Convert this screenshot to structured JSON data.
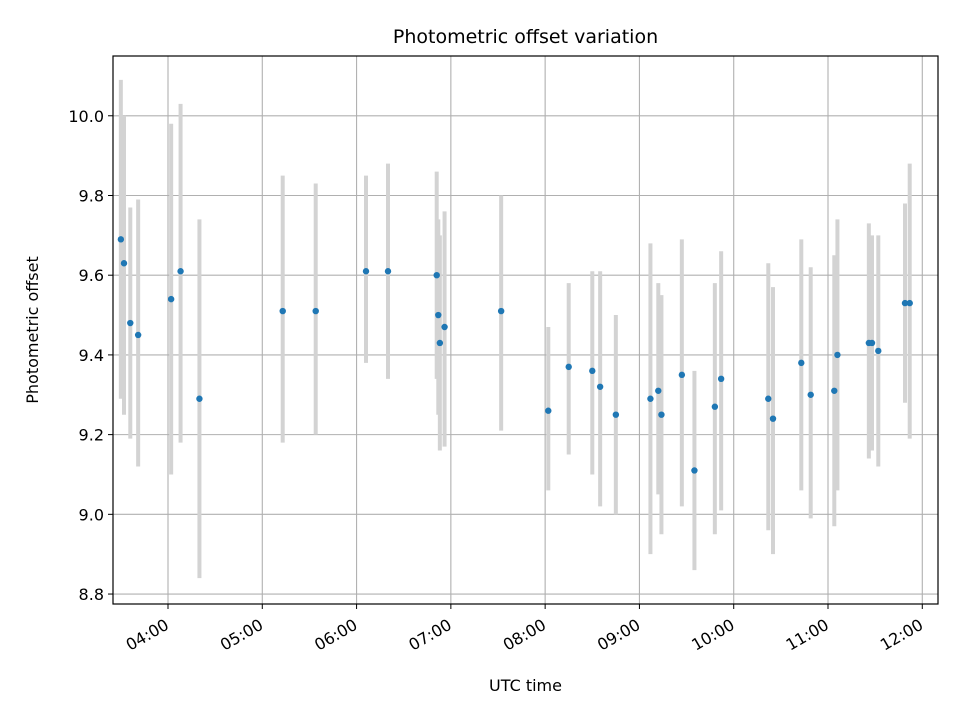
{
  "chart_data": {
    "type": "scatter",
    "title": "Photometric offset variation",
    "xlabel": "UTC time",
    "ylabel": "Photometric offset",
    "xlim": [
      "03:25",
      "12:10"
    ],
    "ylim": [
      8.775,
      10.15
    ],
    "x_ticks": [
      "04:00",
      "05:00",
      "06:00",
      "07:00",
      "08:00",
      "09:00",
      "10:00",
      "11:00",
      "12:00"
    ],
    "y_ticks": [
      "8.8",
      "9.0",
      "9.2",
      "9.4",
      "9.6",
      "9.8",
      "10.0"
    ],
    "grid": true,
    "marker_color": "#1f77b4",
    "errorbar_color": "#d3d3d3",
    "points": [
      {
        "time": "03:30",
        "value": 9.69,
        "low": 9.29,
        "high": 10.09
      },
      {
        "time": "03:32",
        "value": 9.63,
        "low": 9.25,
        "high": 10.0
      },
      {
        "time": "03:36",
        "value": 9.48,
        "low": 9.19,
        "high": 9.77
      },
      {
        "time": "03:41",
        "value": 9.45,
        "low": 9.12,
        "high": 9.79
      },
      {
        "time": "04:02",
        "value": 9.54,
        "low": 9.1,
        "high": 9.98
      },
      {
        "time": "04:08",
        "value": 9.61,
        "low": 9.18,
        "high": 10.03
      },
      {
        "time": "04:20",
        "value": 9.29,
        "low": 8.84,
        "high": 9.74
      },
      {
        "time": "05:13",
        "value": 9.51,
        "low": 9.18,
        "high": 9.85
      },
      {
        "time": "05:34",
        "value": 9.51,
        "low": 9.2,
        "high": 9.83
      },
      {
        "time": "06:06",
        "value": 9.61,
        "low": 9.38,
        "high": 9.85
      },
      {
        "time": "06:20",
        "value": 9.61,
        "low": 9.34,
        "high": 9.88
      },
      {
        "time": "06:51",
        "value": 9.6,
        "low": 9.34,
        "high": 9.86
      },
      {
        "time": "06:52",
        "value": 9.5,
        "low": 9.25,
        "high": 9.74
      },
      {
        "time": "06:53",
        "value": 9.43,
        "low": 9.16,
        "high": 9.7
      },
      {
        "time": "06:56",
        "value": 9.47,
        "low": 9.17,
        "high": 9.76
      },
      {
        "time": "07:32",
        "value": 9.51,
        "low": 9.21,
        "high": 9.8
      },
      {
        "time": "08:02",
        "value": 9.26,
        "low": 9.06,
        "high": 9.47
      },
      {
        "time": "08:15",
        "value": 9.37,
        "low": 9.15,
        "high": 9.58
      },
      {
        "time": "08:30",
        "value": 9.36,
        "low": 9.1,
        "high": 9.61
      },
      {
        "time": "08:35",
        "value": 9.32,
        "low": 9.02,
        "high": 9.61
      },
      {
        "time": "08:45",
        "value": 9.25,
        "low": 9.0,
        "high": 9.5
      },
      {
        "time": "09:07",
        "value": 9.29,
        "low": 8.9,
        "high": 9.68
      },
      {
        "time": "09:12",
        "value": 9.31,
        "low": 9.05,
        "high": 9.58
      },
      {
        "time": "09:14",
        "value": 9.25,
        "low": 8.95,
        "high": 9.55
      },
      {
        "time": "09:27",
        "value": 9.35,
        "low": 9.02,
        "high": 9.69
      },
      {
        "time": "09:35",
        "value": 9.11,
        "low": 8.86,
        "high": 9.36
      },
      {
        "time": "09:48",
        "value": 9.27,
        "low": 8.95,
        "high": 9.58
      },
      {
        "time": "09:52",
        "value": 9.34,
        "low": 9.01,
        "high": 9.66
      },
      {
        "time": "10:22",
        "value": 9.29,
        "low": 8.96,
        "high": 9.63
      },
      {
        "time": "10:25",
        "value": 9.24,
        "low": 8.9,
        "high": 9.57
      },
      {
        "time": "10:43",
        "value": 9.38,
        "low": 9.06,
        "high": 9.69
      },
      {
        "time": "10:49",
        "value": 9.3,
        "low": 8.99,
        "high": 9.62
      },
      {
        "time": "11:04",
        "value": 9.31,
        "low": 8.97,
        "high": 9.65
      },
      {
        "time": "11:06",
        "value": 9.4,
        "low": 9.06,
        "high": 9.74
      },
      {
        "time": "11:26",
        "value": 9.43,
        "low": 9.14,
        "high": 9.73
      },
      {
        "time": "11:28",
        "value": 9.43,
        "low": 9.16,
        "high": 9.7
      },
      {
        "time": "11:32",
        "value": 9.41,
        "low": 9.12,
        "high": 9.7
      },
      {
        "time": "11:49",
        "value": 9.53,
        "low": 9.28,
        "high": 9.78
      },
      {
        "time": "11:52",
        "value": 9.53,
        "low": 9.19,
        "high": 9.88
      }
    ]
  }
}
